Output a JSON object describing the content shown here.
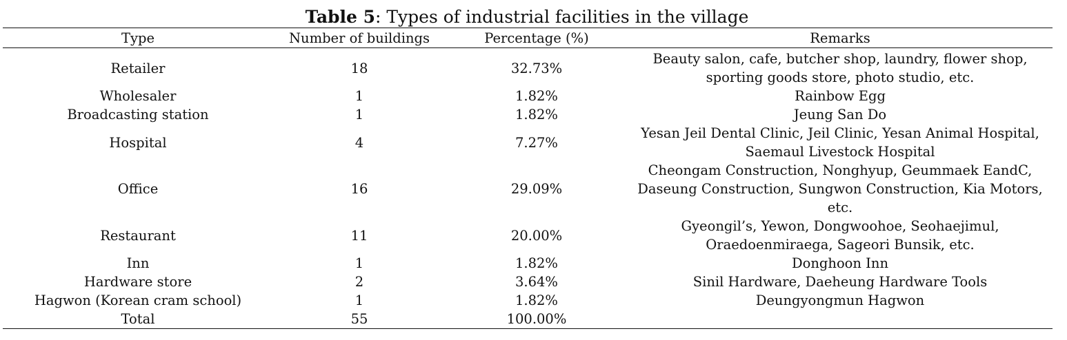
{
  "caption": {
    "label": "Table 5",
    "text": ": Types of industrial facilities in the village"
  },
  "table": {
    "headers": [
      "Type",
      "Number of buildings",
      "Percentage (%)",
      "Remarks"
    ],
    "rows": [
      {
        "type": "Retailer",
        "number": "18",
        "percentage": "32.73%",
        "remarks": "Beauty salon, cafe, butcher shop, laundry, flower shop, sporting goods store, photo studio, etc."
      },
      {
        "type": "Wholesaler",
        "number": "1",
        "percentage": "1.82%",
        "remarks": "Rainbow Egg"
      },
      {
        "type": "Broadcasting station",
        "number": "1",
        "percentage": "1.82%",
        "remarks": "Jeung San Do"
      },
      {
        "type": "Hospital",
        "number": "4",
        "percentage": "7.27%",
        "remarks": "Yesan Jeil Dental Clinic, Jeil Clinic, Yesan Animal Hospital, Saemaul Livestock Hospital"
      },
      {
        "type": "Office",
        "number": "16",
        "percentage": "29.09%",
        "remarks": "Cheongam Construction, Nonghyup, Geummaek EandC, Daseung Construction, Sungwon Construction, Kia Motors, etc."
      },
      {
        "type": "Restaurant",
        "number": "11",
        "percentage": "20.00%",
        "remarks": "Gyeongil’s, Yewon, Dongwoohoe, Seohaejimul, Oraedoenmiraega, Sageori Bunsik, etc."
      },
      {
        "type": "Inn",
        "number": "1",
        "percentage": "1.82%",
        "remarks": "Donghoon Inn"
      },
      {
        "type": "Hardware store",
        "number": "2",
        "percentage": "3.64%",
        "remarks": "Sinil Hardware, Daeheung Hardware Tools"
      },
      {
        "type": "Hagwon (Korean cram school)",
        "number": "1",
        "percentage": "1.82%",
        "remarks": "Deungyongmun Hagwon"
      },
      {
        "type": "Total",
        "number": "55",
        "percentage": "100.00%",
        "remarks": ""
      }
    ]
  }
}
